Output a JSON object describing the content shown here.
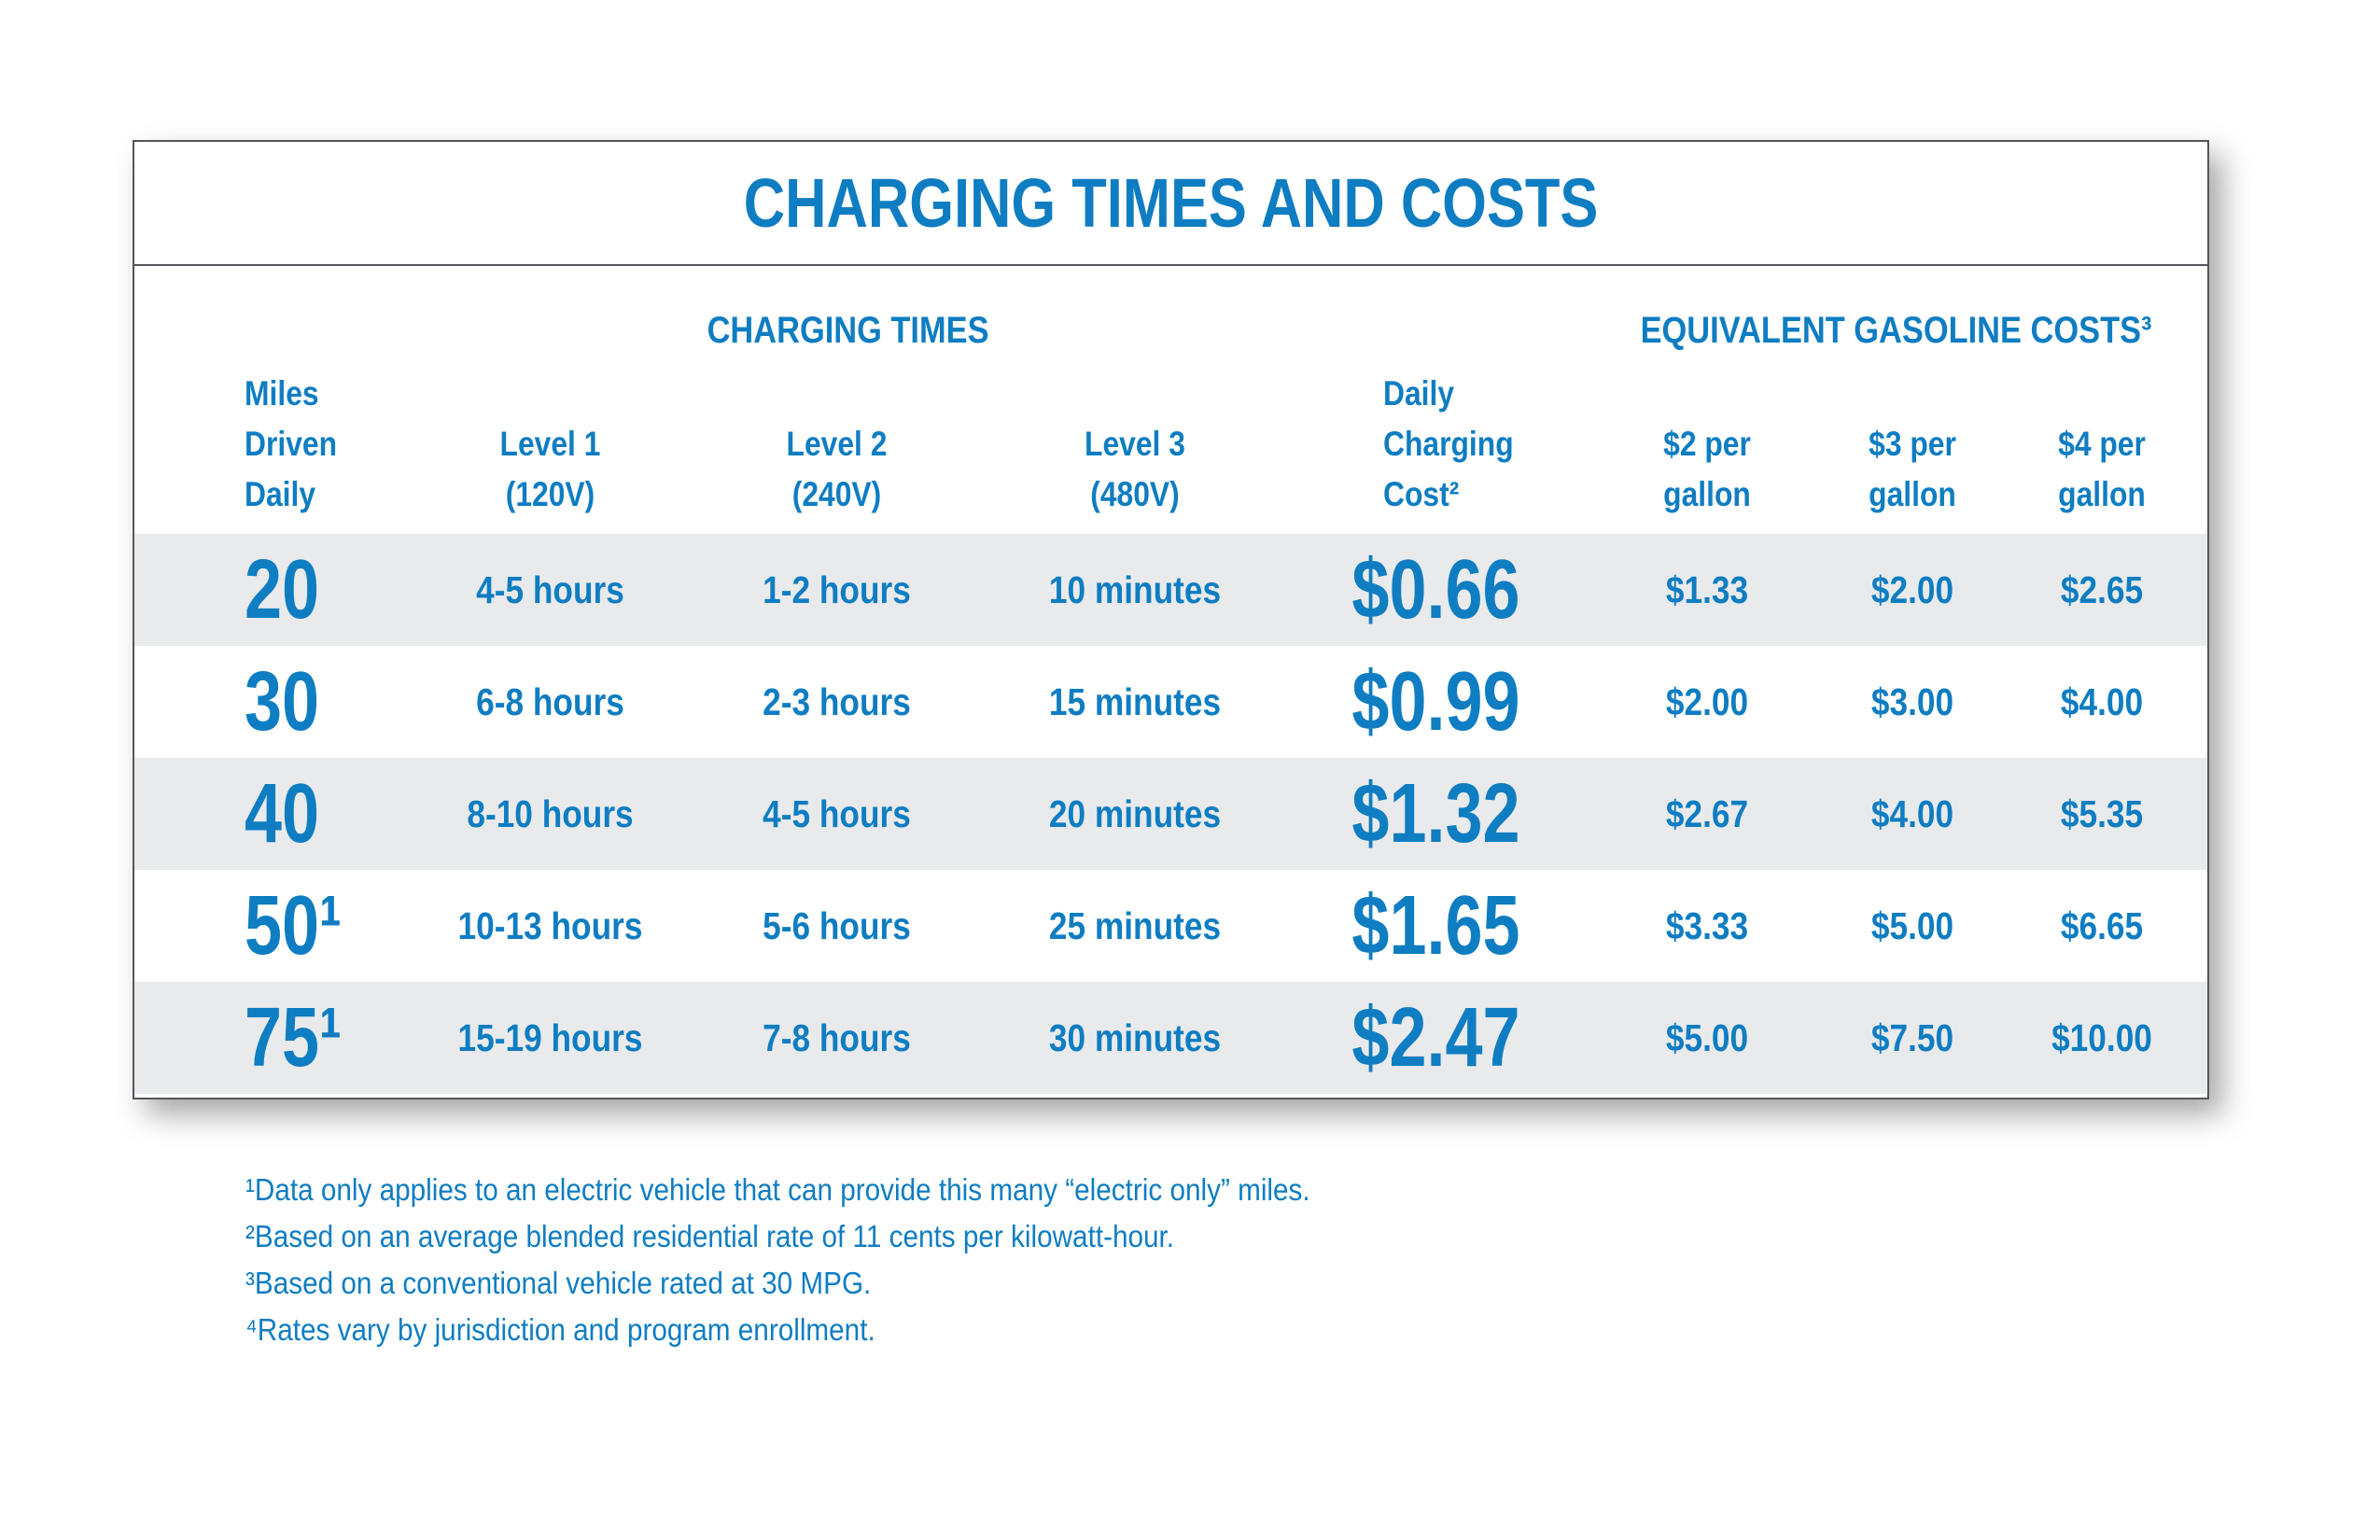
{
  "colors": {
    "accent": "#0f7dc2",
    "stripe": "#e8eaec",
    "border": "#55565a",
    "page_bg": "#ffffff",
    "shadow": "rgba(0,0,0,0.35)"
  },
  "header": {
    "col_miles": [
      "Miles",
      "Driven",
      "Daily"
    ],
    "col_level1": [
      "Level 1",
      "(120V)"
    ],
    "col_level2": [
      "Level 2",
      "(240V)"
    ],
    "col_level3": [
      "Level 3",
      "(480V)"
    ],
    "col_cost": [
      "Daily",
      "Charging",
      "Cost²"
    ],
    "col_g2": [
      "$2 per",
      "gallon"
    ],
    "col_g3": [
      "$3 per",
      "gallon"
    ],
    "col_g4": [
      "$4 per",
      "gallon"
    ]
  },
  "chart_data": {
    "type": "table",
    "title": "CHARGING TIMES AND COSTS",
    "column_groups": [
      "CHARGING TIMES",
      "EQUIVALENT GASOLINE COSTS³"
    ],
    "columns": [
      "Miles Driven Daily",
      "Level 1 (120V)",
      "Level 2 (240V)",
      "Level 3 (480V)",
      "Daily Charging Cost²",
      "$2 per gallon",
      "$3 per gallon",
      "$4 per gallon"
    ],
    "rows": [
      [
        "20",
        "4-5 hours",
        "1-2 hours",
        "10 minutes",
        "$0.66",
        "$1.33",
        "$2.00",
        "$2.65"
      ],
      [
        "30",
        "6-8 hours",
        "2-3 hours",
        "15 minutes",
        "$0.99",
        "$2.00",
        "$3.00",
        "$4.00"
      ],
      [
        "40",
        "8-10 hours",
        "4-5 hours",
        "20 minutes",
        "$1.32",
        "$2.67",
        "$4.00",
        "$5.35"
      ],
      [
        "50¹",
        "10-13 hours",
        "5-6 hours",
        "25 minutes",
        "$1.65",
        "$3.33",
        "$5.00",
        "$6.65"
      ],
      [
        "75¹",
        "15-19 hours",
        "7-8 hours",
        "30 minutes",
        "$2.47",
        "$5.00",
        "$7.50",
        "$10.00"
      ]
    ],
    "footnotes": [
      "¹Data only applies to an electric vehicle that can provide this many “electric only” miles.",
      "²Based on an average blended residential rate of 11 cents per kilowatt-hour.",
      "³Based on a conventional vehicle rated at 30 MPG.",
      "⁴Rates vary by jurisdiction and program enrollment."
    ]
  }
}
